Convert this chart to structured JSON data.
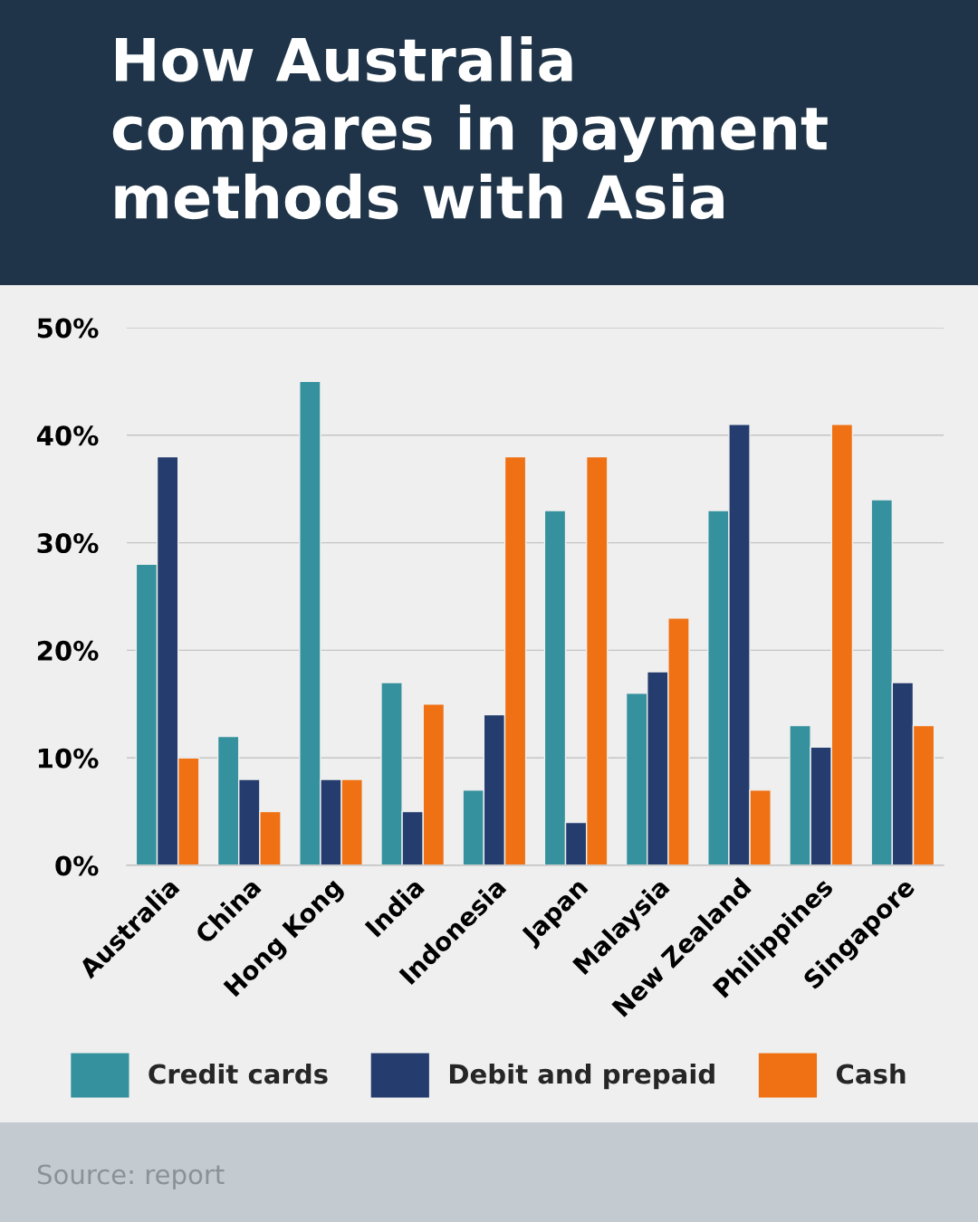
{
  "chart_data": {
    "type": "bar",
    "title": "How Australia\ncompares in payment\nmethods with Asia",
    "categories": [
      "Australia",
      "China",
      "Hong Kong",
      "India",
      "Indonesia",
      "Japan",
      "Malaysia",
      "New Zealand",
      "Philippines",
      "Singapore"
    ],
    "series": [
      {
        "name": "Credit cards",
        "color": "#35919e",
        "values": [
          28,
          12,
          45,
          17,
          7,
          33,
          16,
          33,
          13,
          34
        ]
      },
      {
        "name": "Debit and prepaid",
        "color": "#243d6e",
        "values": [
          38,
          8,
          8,
          5,
          14,
          4,
          18,
          41,
          11,
          17
        ]
      },
      {
        "name": "Cash",
        "color": "#ef7114",
        "values": [
          10,
          5,
          8,
          15,
          38,
          38,
          23,
          7,
          41,
          13
        ]
      }
    ],
    "ylim": [
      0,
      50
    ],
    "yticks": [
      {
        "value": 0,
        "label": "0%"
      },
      {
        "value": 10,
        "label": "10%"
      },
      {
        "value": 20,
        "label": "20%"
      },
      {
        "value": 30,
        "label": "30%"
      },
      {
        "value": 40,
        "label": "40%"
      },
      {
        "value": 50,
        "label": "50%"
      }
    ],
    "grid": "y",
    "legend": "bottom",
    "annotations": [
      "Source: report"
    ]
  }
}
